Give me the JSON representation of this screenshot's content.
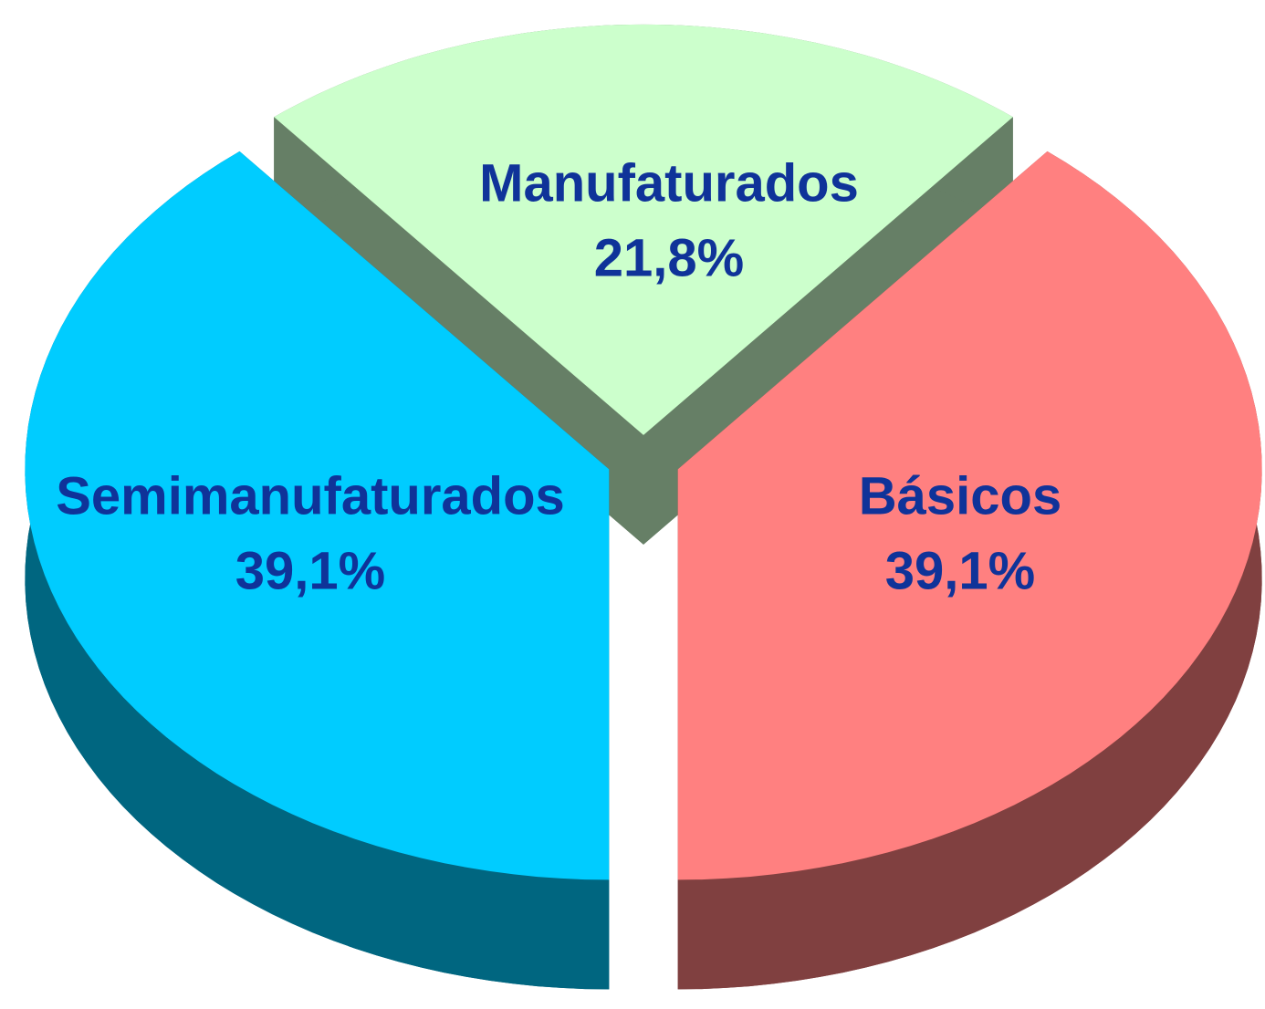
{
  "chart_data": {
    "type": "pie",
    "categories": [
      "Manufaturados",
      "Básicos",
      "Semimanufaturados"
    ],
    "values": [
      21.8,
      39.1,
      39.1
    ],
    "value_labels": [
      "21,8%",
      "39,1%",
      "39,1%"
    ],
    "colors": [
      "#ccffcc",
      "#ff8080",
      "#00ccff"
    ],
    "side_colors": [
      "#667f66",
      "#804040",
      "#006680"
    ]
  }
}
